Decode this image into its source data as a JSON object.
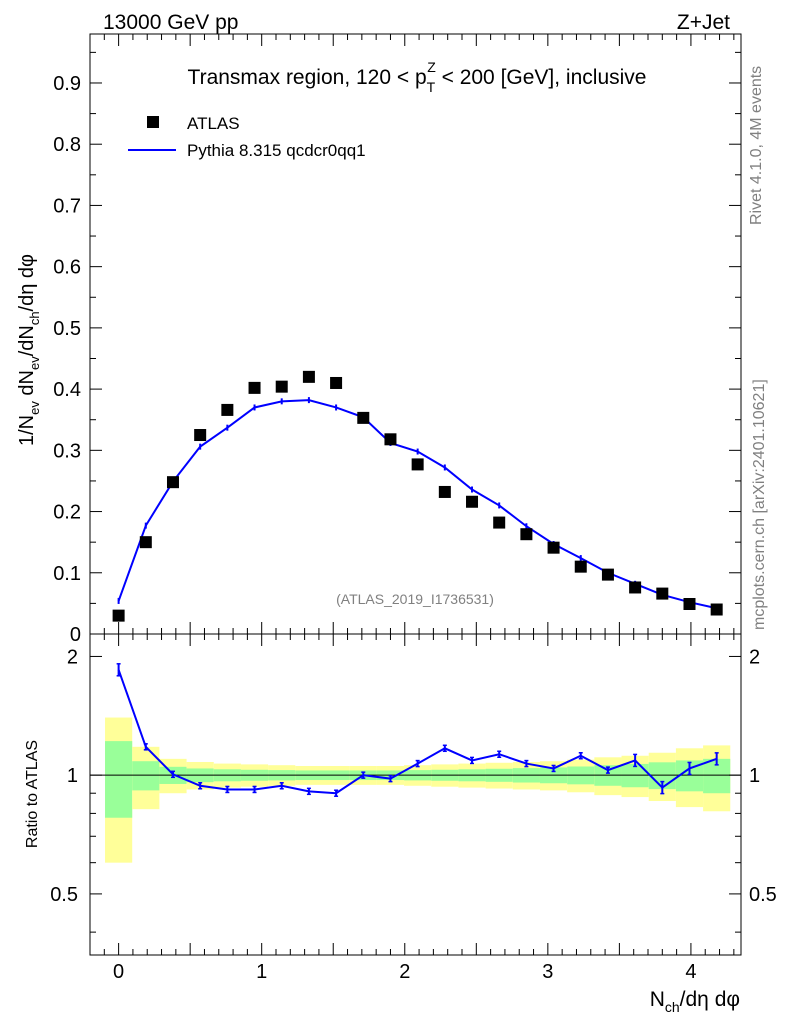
{
  "header": {
    "energy": "13000 GeV pp",
    "process": "Z+Jet"
  },
  "side_labels": {
    "rivet": "Rivet 4.1.0,  4M events",
    "mcplots": "mcplots.cern.ch [arXiv:2401.10621]"
  },
  "watermark": "(ATLAS_2019_I1736531)",
  "colors": {
    "data": "#000000",
    "mc": "#0000ff",
    "band_inner": "#99ff99",
    "band_outer": "#ffff99"
  },
  "chart_data": [
    {
      "type": "scatter",
      "panel": "main",
      "title_parts": {
        "pre": "Transmax region, 120 < p",
        "sub": "T",
        "sup": "Z",
        "post": " < 200 [GeV], inclusive"
      },
      "ylabel_parts": {
        "a": "1/N",
        "a_sub": "ev",
        "b": " dN",
        "b_sub": "ev",
        "c": "/dN",
        "c_sub": "ch",
        "d": "/dη dφ"
      },
      "xlim": [
        -0.2,
        4.35
      ],
      "ylim": [
        0,
        0.98
      ],
      "yticks": [
        "0",
        "0.1",
        "0.2",
        "0.3",
        "0.4",
        "0.5",
        "0.6",
        "0.7",
        "0.8",
        "0.9"
      ],
      "legend": [
        {
          "name": "ATLAS",
          "marker": "square"
        },
        {
          "name": "Pythia 8.315 qcdcr0qq1",
          "marker": "line"
        }
      ],
      "x": [
        0.0,
        0.19,
        0.38,
        0.57,
        0.76,
        0.95,
        1.14,
        1.33,
        1.52,
        1.71,
        1.9,
        2.09,
        2.28,
        2.47,
        2.66,
        2.85,
        3.04,
        3.23,
        3.42,
        3.61,
        3.8,
        3.99,
        4.18
      ],
      "series": [
        {
          "name": "ATLAS",
          "values": [
            0.03,
            0.15,
            0.248,
            0.325,
            0.366,
            0.402,
            0.404,
            0.42,
            0.41,
            0.353,
            0.318,
            0.277,
            0.232,
            0.216,
            0.182,
            0.163,
            0.141,
            0.11,
            0.097,
            0.076,
            0.066,
            0.049,
            0.04
          ]
        },
        {
          "name": "Pythia 8.315 qcdcr0qq1",
          "values": [
            0.054,
            0.177,
            0.249,
            0.306,
            0.337,
            0.37,
            0.38,
            0.382,
            0.37,
            0.354,
            0.312,
            0.298,
            0.272,
            0.236,
            0.21,
            0.176,
            0.147,
            0.124,
            0.1,
            0.082,
            0.064,
            0.052,
            0.042
          ]
        }
      ]
    },
    {
      "type": "line",
      "panel": "ratio",
      "ylabel": "Ratio to ATLAS",
      "xlabel_parts": {
        "a": "N",
        "a_sub": "ch",
        "b": "/dη dφ"
      },
      "xlim": [
        -0.2,
        4.35
      ],
      "ylim": [
        0.35,
        2.28
      ],
      "yticks": [
        "0.5",
        "1",
        "2"
      ],
      "xticks": [
        "0",
        "1",
        "2",
        "3",
        "4"
      ],
      "x": [
        0.0,
        0.19,
        0.38,
        0.57,
        0.76,
        0.95,
        1.14,
        1.33,
        1.52,
        1.71,
        1.9,
        2.09,
        2.28,
        2.47,
        2.66,
        2.85,
        3.04,
        3.23,
        3.42,
        3.61,
        3.8,
        3.99,
        4.18
      ],
      "series": [
        {
          "name": "Pythia 8.315 qcdcr0qq1 / ATLAS",
          "values": [
            1.85,
            1.18,
            1.005,
            0.94,
            0.92,
            0.92,
            0.94,
            0.91,
            0.9,
            1.0,
            0.98,
            1.07,
            1.17,
            1.09,
            1.13,
            1.07,
            1.04,
            1.12,
            1.03,
            1.09,
            0.93,
            1.04,
            1.1
          ]
        }
      ],
      "band_outer_half": [
        0.4,
        0.18,
        0.1,
        0.08,
        0.07,
        0.065,
        0.06,
        0.055,
        0.055,
        0.055,
        0.055,
        0.06,
        0.065,
        0.07,
        0.075,
        0.08,
        0.085,
        0.095,
        0.11,
        0.12,
        0.14,
        0.17,
        0.19
      ],
      "band_inner_half": [
        0.22,
        0.085,
        0.05,
        0.04,
        0.035,
        0.032,
        0.03,
        0.028,
        0.028,
        0.028,
        0.028,
        0.03,
        0.032,
        0.035,
        0.038,
        0.042,
        0.046,
        0.052,
        0.06,
        0.068,
        0.078,
        0.09,
        0.1
      ]
    }
  ]
}
